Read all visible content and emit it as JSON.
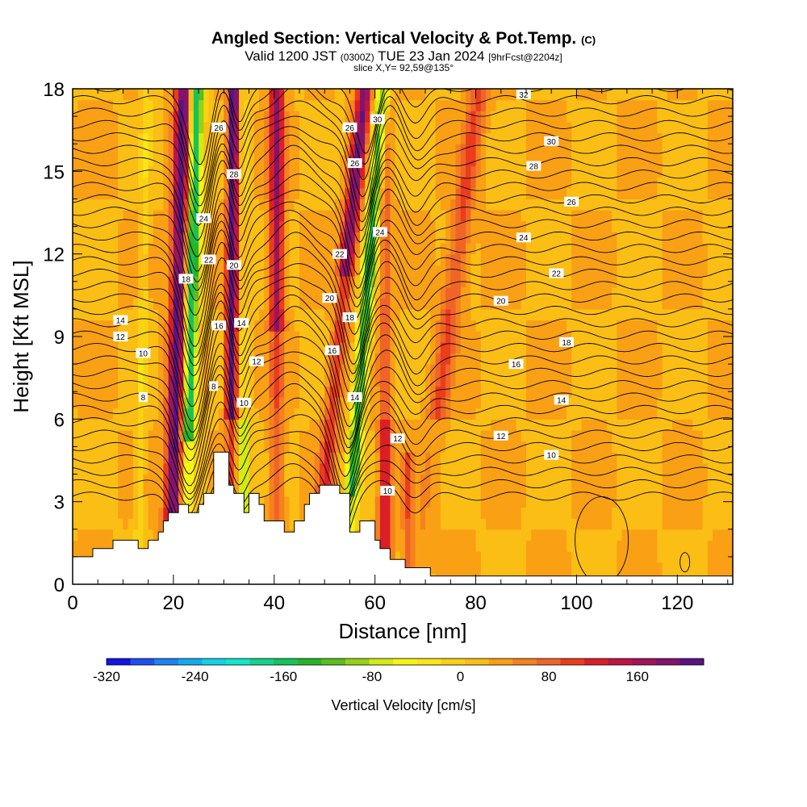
{
  "title": {
    "main": "Angled Section: Vertical Velocity & Pot.Temp.",
    "mark": "(C)"
  },
  "subtitle": {
    "pre": "Valid 1200 JST",
    "utc": "(0300Z)",
    "date": "TUE 23 Jan 2024",
    "fcst": "[9hrFcst@2204z]"
  },
  "slice": "slice X,Y= 92,59@135°",
  "chart_data": {
    "type": "contour",
    "xlabel": "Distance [nm]",
    "ylabel": "Height [Kft MSL]",
    "xlim": [
      0,
      131
    ],
    "ylim": [
      0,
      18
    ],
    "xticks": [
      "0",
      "20",
      "40",
      "60",
      "80",
      "100",
      "120"
    ],
    "yticks": [
      "0",
      "3",
      "6",
      "9",
      "12",
      "15",
      "18"
    ],
    "colorbar": {
      "label": "Vertical Velocity [cm/s]",
      "range": [
        -320,
        220
      ],
      "ticks": [
        "-320",
        "-240",
        "-160",
        "-80",
        "0",
        "80",
        "160"
      ],
      "colors": [
        "#1414e6",
        "#1e50f0",
        "#1e82f0",
        "#14aaf0",
        "#14d2e6",
        "#14e6c8",
        "#14d28c",
        "#14c35a",
        "#28b428",
        "#5abe1e",
        "#96d214",
        "#d2eb14",
        "#f5f514",
        "#fae614",
        "#fad214",
        "#fabe14",
        "#faa014",
        "#f5821e",
        "#f06428",
        "#eb3c1e",
        "#dc1e28",
        "#be1446",
        "#a0145a",
        "#82146e",
        "#5a1482"
      ]
    },
    "terrain": [
      [
        0,
        1.0
      ],
      [
        4,
        1.0
      ],
      [
        4,
        1.3
      ],
      [
        8,
        1.3
      ],
      [
        8,
        1.6
      ],
      [
        13,
        1.6
      ],
      [
        13,
        1.3
      ],
      [
        15,
        1.3
      ],
      [
        15,
        1.6
      ],
      [
        17,
        1.6
      ],
      [
        17,
        1.9
      ],
      [
        18,
        1.9
      ],
      [
        18,
        2.3
      ],
      [
        19,
        2.3
      ],
      [
        19,
        2.6
      ],
      [
        21,
        2.6
      ],
      [
        21,
        2.9
      ],
      [
        23,
        2.9
      ],
      [
        23,
        2.6
      ],
      [
        25,
        2.6
      ],
      [
        25,
        2.9
      ],
      [
        26,
        2.9
      ],
      [
        26,
        3.3
      ],
      [
        28,
        3.3
      ],
      [
        28,
        4.8
      ],
      [
        31,
        4.8
      ],
      [
        31,
        3.6
      ],
      [
        32,
        3.6
      ],
      [
        32,
        3.3
      ],
      [
        34,
        3.3
      ],
      [
        34,
        2.6
      ],
      [
        35,
        2.6
      ],
      [
        35,
        3.3
      ],
      [
        37,
        3.3
      ],
      [
        37,
        2.9
      ],
      [
        38,
        2.9
      ],
      [
        38,
        2.3
      ],
      [
        42,
        2.3
      ],
      [
        42,
        1.9
      ],
      [
        44,
        1.9
      ],
      [
        44,
        2.3
      ],
      [
        46,
        2.3
      ],
      [
        46,
        2.9
      ],
      [
        47,
        2.9
      ],
      [
        47,
        3.3
      ],
      [
        49,
        3.3
      ],
      [
        49,
        3.6
      ],
      [
        53,
        3.6
      ],
      [
        53,
        3.3
      ],
      [
        55,
        3.3
      ],
      [
        55,
        1.9
      ],
      [
        57,
        1.9
      ],
      [
        57,
        2.3
      ],
      [
        60,
        2.3
      ],
      [
        60,
        1.6
      ],
      [
        61,
        1.6
      ],
      [
        61,
        1.3
      ],
      [
        63,
        1.3
      ],
      [
        63,
        0.9
      ],
      [
        66,
        0.9
      ],
      [
        66,
        0.6
      ],
      [
        71,
        0.6
      ],
      [
        71,
        0.3
      ],
      [
        131,
        0.3
      ]
    ],
    "theta_labels": [
      {
        "x": 9.5,
        "y": 9.6,
        "v": "14"
      },
      {
        "x": 9.5,
        "y": 9.0,
        "v": "12"
      },
      {
        "x": 14,
        "y": 8.4,
        "v": "10"
      },
      {
        "x": 14,
        "y": 6.8,
        "v": "8"
      },
      {
        "x": 22.5,
        "y": 11.1,
        "v": "18"
      },
      {
        "x": 27,
        "y": 11.8,
        "v": "22"
      },
      {
        "x": 26,
        "y": 13.3,
        "v": "24"
      },
      {
        "x": 29,
        "y": 16.6,
        "v": "26"
      },
      {
        "x": 32,
        "y": 14.9,
        "v": "28"
      },
      {
        "x": 32,
        "y": 11.6,
        "v": "20"
      },
      {
        "x": 29,
        "y": 9.4,
        "v": "16"
      },
      {
        "x": 33.5,
        "y": 9.5,
        "v": "14"
      },
      {
        "x": 36.5,
        "y": 8.1,
        "v": "12"
      },
      {
        "x": 34,
        "y": 6.6,
        "v": "10"
      },
      {
        "x": 28,
        "y": 7.2,
        "v": "8"
      },
      {
        "x": 51,
        "y": 10.4,
        "v": "20"
      },
      {
        "x": 55,
        "y": 9.7,
        "v": "18"
      },
      {
        "x": 53,
        "y": 12.0,
        "v": "22"
      },
      {
        "x": 51.5,
        "y": 8.5,
        "v": "16"
      },
      {
        "x": 56,
        "y": 6.8,
        "v": "14"
      },
      {
        "x": 55,
        "y": 16.6,
        "v": "26"
      },
      {
        "x": 60.5,
        "y": 16.9,
        "v": "30"
      },
      {
        "x": 56,
        "y": 15.3,
        "v": "26"
      },
      {
        "x": 61,
        "y": 12.8,
        "v": "24"
      },
      {
        "x": 64.5,
        "y": 5.3,
        "v": "12"
      },
      {
        "x": 62.5,
        "y": 3.4,
        "v": "10"
      },
      {
        "x": 89.5,
        "y": 17.8,
        "v": "32"
      },
      {
        "x": 95,
        "y": 16.1,
        "v": "30"
      },
      {
        "x": 91.5,
        "y": 15.2,
        "v": "28"
      },
      {
        "x": 99,
        "y": 13.9,
        "v": "26"
      },
      {
        "x": 89.5,
        "y": 12.6,
        "v": "24"
      },
      {
        "x": 96,
        "y": 11.3,
        "v": "22"
      },
      {
        "x": 85,
        "y": 10.3,
        "v": "20"
      },
      {
        "x": 98,
        "y": 8.8,
        "v": "18"
      },
      {
        "x": 88,
        "y": 8.0,
        "v": "16"
      },
      {
        "x": 97,
        "y": 6.7,
        "v": "14"
      },
      {
        "x": 85,
        "y": 5.4,
        "v": "12"
      },
      {
        "x": 95,
        "y": 4.7,
        "v": "10"
      }
    ]
  }
}
